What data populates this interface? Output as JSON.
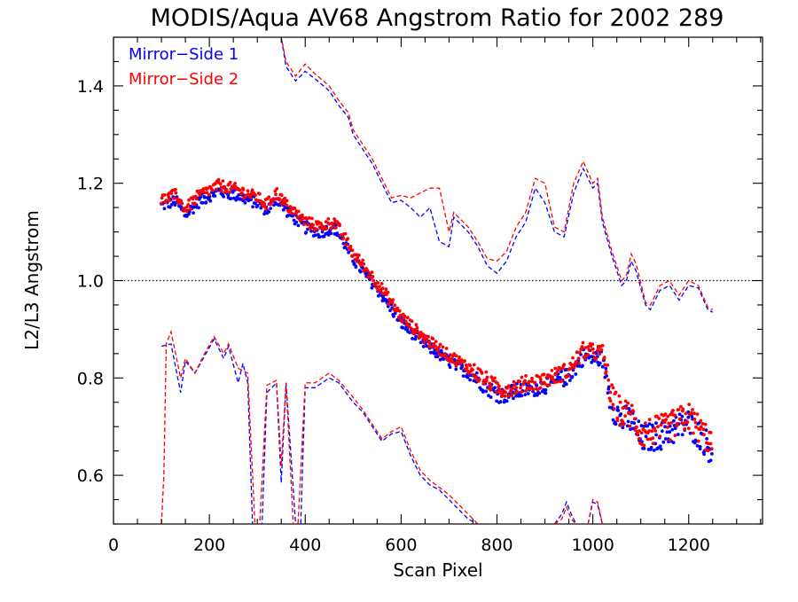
{
  "chart_data": {
    "type": "scatter",
    "title": "MODIS/Aqua AV68 Angstrom Ratio for 2002 289",
    "xlabel": "Scan Pixel",
    "ylabel": "L2/L3 Angstrom",
    "xlim": [
      0,
      1354
    ],
    "ylim": [
      0.5,
      1.5
    ],
    "xticks": [
      "0",
      "200",
      "400",
      "600",
      "800",
      "1000",
      "1200"
    ],
    "xtick_values": [
      0,
      200,
      400,
      600,
      800,
      1000,
      1200
    ],
    "yticks": [
      "0.6",
      "0.8",
      "1.0",
      "1.2",
      "1.4"
    ],
    "ytick_values": [
      0.6,
      0.8,
      1.0,
      1.2,
      1.4
    ],
    "reference_line": 1.0,
    "grid": false,
    "legend_position": "top-left",
    "mean_anchors": [
      [
        100,
        1.16
      ],
      [
        130,
        1.17
      ],
      [
        150,
        1.14
      ],
      [
        180,
        1.17
      ],
      [
        220,
        1.19
      ],
      [
        260,
        1.18
      ],
      [
        300,
        1.165
      ],
      [
        320,
        1.15
      ],
      [
        340,
        1.175
      ],
      [
        360,
        1.15
      ],
      [
        400,
        1.115
      ],
      [
        430,
        1.105
      ],
      [
        460,
        1.115
      ],
      [
        480,
        1.085
      ],
      [
        500,
        1.05
      ],
      [
        550,
        0.99
      ],
      [
        600,
        0.92
      ],
      [
        650,
        0.875
      ],
      [
        700,
        0.84
      ],
      [
        750,
        0.81
      ],
      [
        790,
        0.78
      ],
      [
        810,
        0.77
      ],
      [
        850,
        0.78
      ],
      [
        900,
        0.79
      ],
      [
        950,
        0.81
      ],
      [
        980,
        0.85
      ],
      [
        1020,
        0.845
      ],
      [
        1040,
        0.75
      ],
      [
        1060,
        0.72
      ],
      [
        1080,
        0.72
      ],
      [
        1100,
        0.68
      ],
      [
        1150,
        0.69
      ],
      [
        1200,
        0.715
      ],
      [
        1230,
        0.68
      ],
      [
        1250,
        0.655
      ]
    ],
    "series": [
      {
        "name": "Mirror−Side 1",
        "color": "#0000ff",
        "upper": [
          [
            330,
            1.55
          ],
          [
            350,
            1.5
          ],
          [
            360,
            1.44
          ],
          [
            370,
            1.425
          ],
          [
            380,
            1.41
          ],
          [
            400,
            1.43
          ],
          [
            420,
            1.415
          ],
          [
            450,
            1.39
          ],
          [
            470,
            1.36
          ],
          [
            490,
            1.335
          ],
          [
            500,
            1.3
          ],
          [
            520,
            1.27
          ],
          [
            540,
            1.24
          ],
          [
            560,
            1.2
          ],
          [
            580,
            1.16
          ],
          [
            600,
            1.165
          ],
          [
            620,
            1.15
          ],
          [
            640,
            1.13
          ],
          [
            660,
            1.15
          ],
          [
            680,
            1.08
          ],
          [
            700,
            1.07
          ],
          [
            710,
            1.13
          ],
          [
            720,
            1.12
          ],
          [
            740,
            1.1
          ],
          [
            760,
            1.07
          ],
          [
            780,
            1.03
          ],
          [
            800,
            1.015
          ],
          [
            820,
            1.04
          ],
          [
            840,
            1.09
          ],
          [
            860,
            1.12
          ],
          [
            880,
            1.19
          ],
          [
            900,
            1.16
          ],
          [
            920,
            1.1
          ],
          [
            940,
            1.09
          ],
          [
            960,
            1.18
          ],
          [
            980,
            1.23
          ],
          [
            1000,
            1.19
          ],
          [
            1010,
            1.2
          ],
          [
            1020,
            1.12
          ],
          [
            1040,
            1.05
          ],
          [
            1060,
            0.99
          ],
          [
            1070,
            1.0
          ],
          [
            1080,
            1.04
          ],
          [
            1090,
            1.02
          ],
          [
            1110,
            0.95
          ],
          [
            1120,
            0.94
          ],
          [
            1140,
            0.98
          ],
          [
            1160,
            0.99
          ],
          [
            1180,
            0.96
          ],
          [
            1200,
            0.99
          ],
          [
            1220,
            0.985
          ],
          [
            1240,
            0.94
          ],
          [
            1250,
            0.935
          ]
        ],
        "lower": [
          [
            100,
            0.865
          ],
          [
            120,
            0.87
          ],
          [
            140,
            0.77
          ],
          [
            150,
            0.835
          ],
          [
            170,
            0.81
          ],
          [
            190,
            0.845
          ],
          [
            210,
            0.88
          ],
          [
            230,
            0.84
          ],
          [
            240,
            0.865
          ],
          [
            260,
            0.79
          ],
          [
            270,
            0.83
          ],
          [
            280,
            0.79
          ],
          [
            290,
            0.5
          ],
          [
            300,
            0.48
          ],
          [
            310,
            0.5
          ],
          [
            320,
            0.77
          ],
          [
            340,
            0.79
          ],
          [
            350,
            0.585
          ],
          [
            360,
            0.79
          ],
          [
            380,
            0.5
          ],
          [
            390,
            0.48
          ],
          [
            400,
            0.78
          ],
          [
            420,
            0.78
          ],
          [
            450,
            0.8
          ],
          [
            470,
            0.79
          ],
          [
            500,
            0.75
          ],
          [
            520,
            0.73
          ],
          [
            540,
            0.7
          ],
          [
            560,
            0.67
          ],
          [
            580,
            0.685
          ],
          [
            600,
            0.69
          ],
          [
            620,
            0.64
          ],
          [
            640,
            0.6
          ],
          [
            660,
            0.58
          ],
          [
            680,
            0.57
          ],
          [
            700,
            0.55
          ],
          [
            720,
            0.53
          ],
          [
            740,
            0.51
          ],
          [
            760,
            0.5
          ]
        ],
        "lower_tail": [
          [
            920,
            0.5
          ],
          [
            935,
            0.52
          ],
          [
            945,
            0.545
          ],
          [
            955,
            0.52
          ],
          [
            965,
            0.5
          ]
        ],
        "lower_tail2": [
          [
            990,
            0.5
          ],
          [
            1000,
            0.545
          ],
          [
            1010,
            0.54
          ],
          [
            1020,
            0.5
          ]
        ]
      },
      {
        "name": "Mirror−Side 2",
        "color": "#ff0000",
        "upper": [
          [
            330,
            1.56
          ],
          [
            350,
            1.5
          ],
          [
            360,
            1.45
          ],
          [
            370,
            1.435
          ],
          [
            380,
            1.42
          ],
          [
            400,
            1.445
          ],
          [
            420,
            1.425
          ],
          [
            450,
            1.4
          ],
          [
            470,
            1.37
          ],
          [
            490,
            1.345
          ],
          [
            500,
            1.31
          ],
          [
            520,
            1.28
          ],
          [
            540,
            1.25
          ],
          [
            560,
            1.21
          ],
          [
            580,
            1.17
          ],
          [
            600,
            1.175
          ],
          [
            620,
            1.17
          ],
          [
            640,
            1.18
          ],
          [
            660,
            1.19
          ],
          [
            680,
            1.19
          ],
          [
            700,
            1.1
          ],
          [
            710,
            1.14
          ],
          [
            720,
            1.13
          ],
          [
            740,
            1.11
          ],
          [
            760,
            1.08
          ],
          [
            780,
            1.045
          ],
          [
            800,
            1.04
          ],
          [
            820,
            1.06
          ],
          [
            840,
            1.11
          ],
          [
            860,
            1.14
          ],
          [
            880,
            1.21
          ],
          [
            900,
            1.2
          ],
          [
            920,
            1.11
          ],
          [
            940,
            1.1
          ],
          [
            960,
            1.2
          ],
          [
            980,
            1.245
          ],
          [
            1000,
            1.2
          ],
          [
            1010,
            1.21
          ],
          [
            1020,
            1.13
          ],
          [
            1040,
            1.06
          ],
          [
            1060,
            1.0
          ],
          [
            1070,
            1.01
          ],
          [
            1080,
            1.055
          ],
          [
            1090,
            1.035
          ],
          [
            1110,
            0.955
          ],
          [
            1120,
            0.95
          ],
          [
            1140,
            0.99
          ],
          [
            1160,
            1.0
          ],
          [
            1180,
            0.97
          ],
          [
            1200,
            1.0
          ],
          [
            1220,
            0.99
          ],
          [
            1240,
            0.945
          ],
          [
            1250,
            0.94
          ]
        ],
        "lower": [
          [
            100,
            0.5
          ],
          [
            105,
            0.6
          ],
          [
            110,
            0.87
          ],
          [
            120,
            0.895
          ],
          [
            140,
            0.8
          ],
          [
            150,
            0.84
          ],
          [
            170,
            0.81
          ],
          [
            190,
            0.85
          ],
          [
            210,
            0.885
          ],
          [
            230,
            0.85
          ],
          [
            240,
            0.87
          ],
          [
            260,
            0.82
          ],
          [
            280,
            0.81
          ],
          [
            295,
            0.5
          ],
          [
            305,
            0.5
          ],
          [
            320,
            0.785
          ],
          [
            340,
            0.795
          ],
          [
            350,
            0.62
          ],
          [
            360,
            0.79
          ],
          [
            375,
            0.5
          ],
          [
            385,
            0.5
          ],
          [
            400,
            0.79
          ],
          [
            420,
            0.79
          ],
          [
            450,
            0.81
          ],
          [
            470,
            0.795
          ],
          [
            500,
            0.76
          ],
          [
            520,
            0.735
          ],
          [
            540,
            0.705
          ],
          [
            560,
            0.675
          ],
          [
            580,
            0.69
          ],
          [
            600,
            0.7
          ],
          [
            620,
            0.65
          ],
          [
            640,
            0.61
          ],
          [
            660,
            0.59
          ],
          [
            680,
            0.575
          ],
          [
            700,
            0.56
          ],
          [
            720,
            0.54
          ],
          [
            740,
            0.52
          ],
          [
            760,
            0.5
          ]
        ],
        "lower_tail": [
          [
            920,
            0.5
          ],
          [
            935,
            0.51
          ],
          [
            945,
            0.535
          ],
          [
            955,
            0.51
          ],
          [
            965,
            0.5
          ]
        ],
        "lower_tail2": [
          [
            990,
            0.5
          ],
          [
            1000,
            0.55
          ],
          [
            1010,
            0.545
          ],
          [
            1020,
            0.5
          ]
        ]
      }
    ]
  }
}
